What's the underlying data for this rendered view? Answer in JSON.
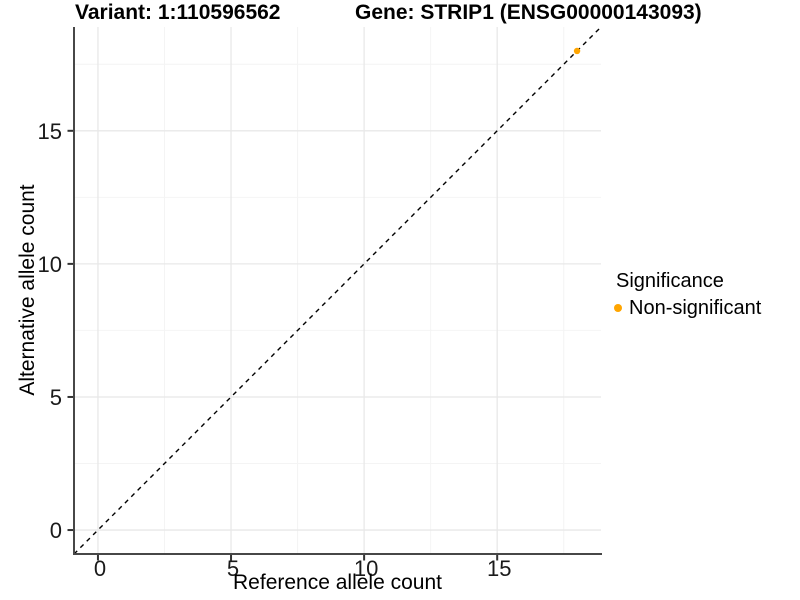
{
  "titles": {
    "variant": "Variant: 1:110596562",
    "gene": "Gene: STRIP1 (ENSG00000143093)"
  },
  "chart_data": {
    "type": "scatter",
    "xlabel": "Reference allele count",
    "ylabel": "Alternative allele count",
    "xlim": [
      -0.9,
      18.9
    ],
    "ylim": [
      -0.9,
      18.9
    ],
    "xticks": [
      0,
      5,
      10,
      15
    ],
    "yticks": [
      0,
      5,
      10,
      15
    ],
    "minor_xticks": [
      2.5,
      7.5,
      12.5,
      17.5
    ],
    "minor_yticks": [
      2.5,
      7.5,
      12.5,
      17.5
    ],
    "grid": "major+minor on white background",
    "identity_line": {
      "style": "dashed",
      "slope": 1,
      "intercept": 0,
      "color": "#000000"
    },
    "series": [
      {
        "name": "Non-significant",
        "color": "#FFA500",
        "points": [
          {
            "x": 18,
            "y": 18
          }
        ]
      }
    ],
    "legend": {
      "title": "Significance",
      "position": "right",
      "items": [
        {
          "label": "Non-significant",
          "color": "#FFA500"
        }
      ]
    }
  },
  "colors": {
    "background": "#ffffff",
    "grid_major": "#e8e8e8",
    "grid_minor": "#f4f4f4",
    "axis_line": "#474747",
    "tick_mark": "#333333",
    "tick_label": "#1a1a1a",
    "point": "#FFA500"
  }
}
